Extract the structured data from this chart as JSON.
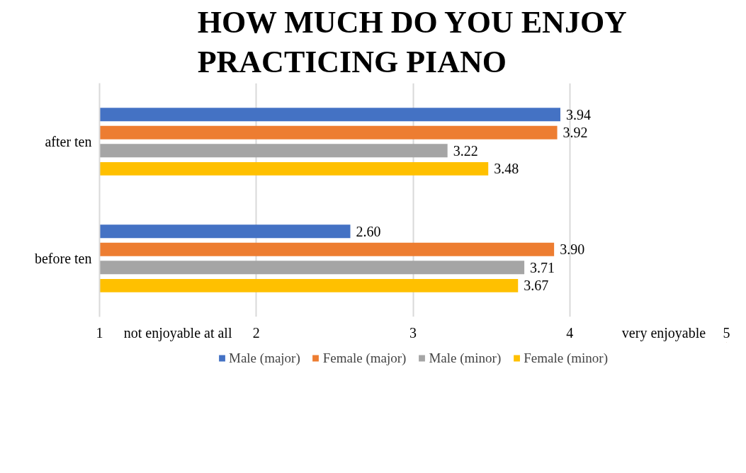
{
  "chart_data": {
    "type": "bar",
    "orientation": "horizontal",
    "title": "HOW MUCH DO YOU ENJOY\nPRACTICING PIANO",
    "categories": [
      "after ten",
      "before ten"
    ],
    "series": [
      {
        "name": "Male (major)",
        "color": "#4472c4",
        "values": [
          3.94,
          2.6
        ],
        "value_labels": [
          "3.94",
          "2.60"
        ]
      },
      {
        "name": "Female (major)",
        "color": "#ed7d31",
        "values": [
          3.92,
          3.9
        ],
        "value_labels": [
          "3.92",
          "3.90"
        ]
      },
      {
        "name": "Male (minor)",
        "color": "#a5a5a5",
        "values": [
          3.22,
          3.71
        ],
        "value_labels": [
          "3.22",
          "3.71"
        ]
      },
      {
        "name": "Female (minor)",
        "color": "#ffc000",
        "values": [
          3.48,
          3.67
        ],
        "value_labels": [
          "3.48",
          "3.67"
        ]
      }
    ],
    "xlim": [
      1,
      5
    ],
    "xticks": [
      1,
      {
        "value": 1.5,
        "label": "not enjoyable at all"
      },
      2,
      3,
      4,
      {
        "value": 4.6,
        "label": "very enjoyable"
      },
      5
    ],
    "grid": "x",
    "legend": "bottom"
  }
}
